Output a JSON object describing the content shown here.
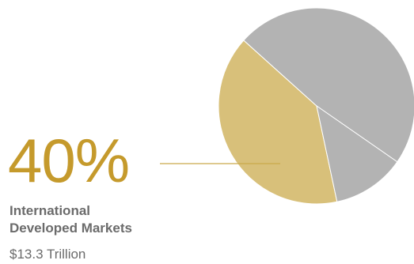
{
  "chart_data": {
    "type": "pie",
    "slices": [
      {
        "label": "International Developed Markets",
        "value": 40,
        "color": "#d8c07a",
        "highlighted": true
      },
      {
        "label": "",
        "value": 48,
        "color": "#b3b3b3"
      },
      {
        "label": "",
        "value": 12,
        "color": "#b3b3b3"
      }
    ],
    "callout": {
      "percent": "40%",
      "label_line1": "International",
      "label_line2": "Developed Markets",
      "amount": "$13.3 Trillion"
    },
    "colors": {
      "accent": "#c59a2c",
      "leader_line": "#c9a94a",
      "text": "#6b6b6b",
      "slice_separator": "#ffffff"
    }
  }
}
